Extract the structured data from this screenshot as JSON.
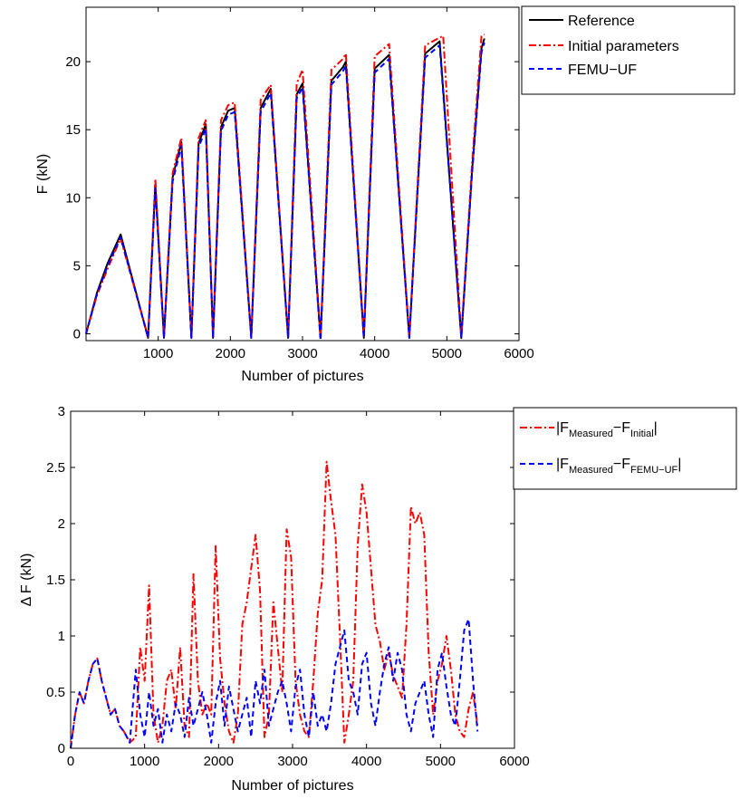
{
  "chart_data": [
    {
      "type": "line",
      "xlabel": "Number of pictures",
      "ylabel": "F (kN)",
      "xlim": [
        0,
        6000
      ],
      "ylim": [
        -0.5,
        24
      ],
      "xticks": [
        "1000",
        "2000",
        "3000",
        "4000",
        "5000",
        "6000"
      ],
      "yticks": [
        "0",
        "5",
        "10",
        "15",
        "20"
      ],
      "grid": false,
      "legend_position": "outside-top-right",
      "series": [
        {
          "name": "Reference",
          "color": "#000000",
          "style": "solid",
          "x": [
            0,
            150,
            300,
            480,
            860,
            960,
            1080,
            1200,
            1320,
            1460,
            1560,
            1660,
            1760,
            1870,
            1970,
            2060,
            2290,
            2420,
            2560,
            2800,
            2920,
            3000,
            3250,
            3400,
            3560,
            3600,
            3850,
            4000,
            4200,
            4480,
            4700,
            4900,
            5200,
            5350,
            5480,
            5520
          ],
          "y": [
            0,
            3.0,
            5.2,
            7.3,
            -0.3,
            11.0,
            -0.3,
            11.5,
            14.1,
            -0.3,
            14.0,
            15.4,
            -0.3,
            15.2,
            16.4,
            16.6,
            -0.3,
            16.6,
            18.0,
            -0.3,
            17.6,
            18.4,
            -0.3,
            18.6,
            19.6,
            20.0,
            -0.3,
            19.5,
            20.5,
            -0.3,
            20.6,
            21.5,
            -0.3,
            12.0,
            21.0,
            21.7
          ]
        },
        {
          "name": "Initial parameters",
          "color": "#ff0000",
          "style": "dash-dot",
          "x": [
            0,
            150,
            300,
            480,
            860,
            960,
            1080,
            1200,
            1320,
            1460,
            1560,
            1660,
            1760,
            1870,
            1970,
            2060,
            2290,
            2420,
            2560,
            2800,
            2920,
            3000,
            3250,
            3400,
            3560,
            3600,
            3850,
            4000,
            4200,
            4480,
            4700,
            4950,
            5200,
            5350,
            5480,
            5520
          ],
          "y": [
            0,
            2.8,
            4.8,
            7.0,
            -0.2,
            11.4,
            -0.2,
            11.8,
            14.4,
            -0.2,
            14.4,
            15.7,
            -0.2,
            15.7,
            16.8,
            17.0,
            -0.2,
            17.2,
            18.3,
            -0.2,
            18.4,
            19.4,
            -0.2,
            19.4,
            20.2,
            20.6,
            -0.2,
            20.4,
            21.3,
            -0.2,
            21.2,
            21.9,
            -0.2,
            12.5,
            21.9,
            22.0
          ]
        },
        {
          "name": "FEMU−UF",
          "color": "#0000ff",
          "style": "dashed",
          "x": [
            0,
            150,
            300,
            480,
            860,
            960,
            1080,
            1200,
            1320,
            1460,
            1560,
            1660,
            1760,
            1870,
            1970,
            2060,
            2290,
            2420,
            2560,
            2800,
            2920,
            3000,
            3250,
            3400,
            3560,
            3600,
            3850,
            4000,
            4200,
            4480,
            4700,
            4900,
            5200,
            5350,
            5480,
            5520
          ],
          "y": [
            0,
            2.9,
            5.0,
            7.1,
            -0.3,
            10.7,
            -0.3,
            11.2,
            13.8,
            -0.3,
            13.7,
            15.1,
            -0.3,
            14.9,
            16.1,
            16.3,
            -0.3,
            16.3,
            17.7,
            -0.3,
            17.3,
            18.1,
            -0.5,
            18.3,
            19.3,
            19.7,
            -0.3,
            19.2,
            20.2,
            -0.3,
            20.3,
            21.2,
            -0.3,
            11.8,
            20.7,
            21.4
          ]
        }
      ]
    },
    {
      "type": "line",
      "xlabel": "Number of pictures",
      "ylabel": "Δ F (kN)",
      "xlim": [
        0,
        6000
      ],
      "ylim": [
        0,
        3
      ],
      "xticks": [
        "0",
        "1000",
        "2000",
        "3000",
        "4000",
        "5000",
        "6000"
      ],
      "yticks": [
        "0",
        "0.5",
        "1",
        "1.5",
        "2",
        "2.5",
        "3"
      ],
      "grid": false,
      "legend_position": "outside-top-right",
      "series": [
        {
          "name": "|F_Measured−F_Initial|",
          "legend_main": [
            "|F",
            "−F",
            "|"
          ],
          "legend_sub": [
            "Measured",
            "Initial"
          ],
          "color": "#ff0000",
          "style": "dash-dot",
          "x": [
            0,
            60,
            120,
            180,
            240,
            300,
            360,
            420,
            480,
            540,
            600,
            660,
            720,
            800,
            880,
            940,
            1000,
            1060,
            1120,
            1180,
            1240,
            1300,
            1360,
            1420,
            1480,
            1540,
            1600,
            1660,
            1720,
            1780,
            1840,
            1900,
            1960,
            2020,
            2080,
            2140,
            2200,
            2260,
            2320,
            2380,
            2440,
            2500,
            2560,
            2620,
            2680,
            2740,
            2800,
            2860,
            2920,
            2980,
            3040,
            3100,
            3160,
            3220,
            3280,
            3340,
            3400,
            3460,
            3520,
            3580,
            3640,
            3700,
            3760,
            3820,
            3880,
            3940,
            4000,
            4060,
            4120,
            4180,
            4240,
            4300,
            4360,
            4420,
            4480,
            4540,
            4600,
            4660,
            4720,
            4780,
            4840,
            4900,
            4960,
            5020,
            5080,
            5140,
            5200,
            5260,
            5320,
            5380,
            5440,
            5500
          ],
          "y": [
            0,
            0.3,
            0.5,
            0.4,
            0.6,
            0.75,
            0.8,
            0.6,
            0.45,
            0.3,
            0.35,
            0.2,
            0.15,
            0.05,
            0.1,
            0.9,
            0.6,
            1.45,
            0.3,
            0.05,
            0.2,
            0.6,
            0.7,
            0.35,
            0.9,
            0.2,
            0.1,
            1.55,
            0.6,
            0.3,
            0.4,
            0.3,
            1.8,
            0.8,
            0.4,
            0.15,
            0.05,
            0.3,
            1.1,
            1.3,
            1.6,
            1.9,
            1.4,
            0.1,
            0.3,
            1.3,
            0.9,
            0.5,
            1.95,
            1.7,
            0.6,
            0.3,
            0.15,
            0.1,
            0.6,
            1.2,
            1.5,
            2.55,
            2.2,
            1.9,
            1.0,
            0.05,
            0.3,
            0.6,
            1.8,
            2.35,
            2.1,
            1.6,
            1.1,
            0.95,
            0.7,
            0.85,
            0.65,
            0.55,
            0.45,
            1.1,
            2.15,
            2.0,
            2.1,
            1.9,
            0.85,
            0.3,
            0.6,
            0.75,
            1.0,
            0.7,
            0.3,
            0.15,
            0.1,
            0.35,
            0.5,
            0.2
          ]
        },
        {
          "name": "|F_Measured−F_FEMU−UF|",
          "legend_main": [
            "|F",
            "−F",
            "|"
          ],
          "legend_sub": [
            "Measured",
            "FEMU−UF"
          ],
          "color": "#0000ff",
          "style": "dashed",
          "x": [
            0,
            60,
            120,
            180,
            240,
            300,
            360,
            420,
            480,
            540,
            600,
            660,
            720,
            800,
            880,
            940,
            1000,
            1060,
            1120,
            1180,
            1240,
            1300,
            1360,
            1420,
            1480,
            1540,
            1600,
            1660,
            1720,
            1780,
            1840,
            1900,
            1960,
            2020,
            2080,
            2140,
            2200,
            2260,
            2320,
            2380,
            2440,
            2500,
            2560,
            2620,
            2680,
            2740,
            2800,
            2860,
            2920,
            2980,
            3040,
            3100,
            3160,
            3220,
            3280,
            3340,
            3400,
            3460,
            3520,
            3580,
            3640,
            3700,
            3760,
            3820,
            3880,
            3940,
            4000,
            4060,
            4120,
            4180,
            4240,
            4300,
            4360,
            4420,
            4480,
            4540,
            4600,
            4660,
            4720,
            4780,
            4840,
            4900,
            4960,
            5020,
            5080,
            5140,
            5200,
            5260,
            5320,
            5380,
            5440,
            5500
          ],
          "y": [
            0,
            0.3,
            0.5,
            0.4,
            0.6,
            0.75,
            0.8,
            0.6,
            0.45,
            0.3,
            0.35,
            0.2,
            0.15,
            0.05,
            0.7,
            0.3,
            0.1,
            0.5,
            0.2,
            0.35,
            0.05,
            0.3,
            0.15,
            0.4,
            0.3,
            0.1,
            0.45,
            0.2,
            0.35,
            0.5,
            0.3,
            0.05,
            0.4,
            0.6,
            0.2,
            0.55,
            0.35,
            0.15,
            0.3,
            0.45,
            0.1,
            0.6,
            0.4,
            0.7,
            0.2,
            0.35,
            0.5,
            0.6,
            0.4,
            0.15,
            0.55,
            0.7,
            0.3,
            0.1,
            0.5,
            0.2,
            0.3,
            0.15,
            0.4,
            0.75,
            0.9,
            1.05,
            0.6,
            0.5,
            0.3,
            0.75,
            0.85,
            0.4,
            0.2,
            0.5,
            0.75,
            0.9,
            0.6,
            0.85,
            0.7,
            0.3,
            0.15,
            0.4,
            0.5,
            0.6,
            0.3,
            0.1,
            0.7,
            0.85,
            0.55,
            0.3,
            0.2,
            0.6,
            1.05,
            1.15,
            0.6,
            0.15
          ]
        }
      ]
    }
  ]
}
